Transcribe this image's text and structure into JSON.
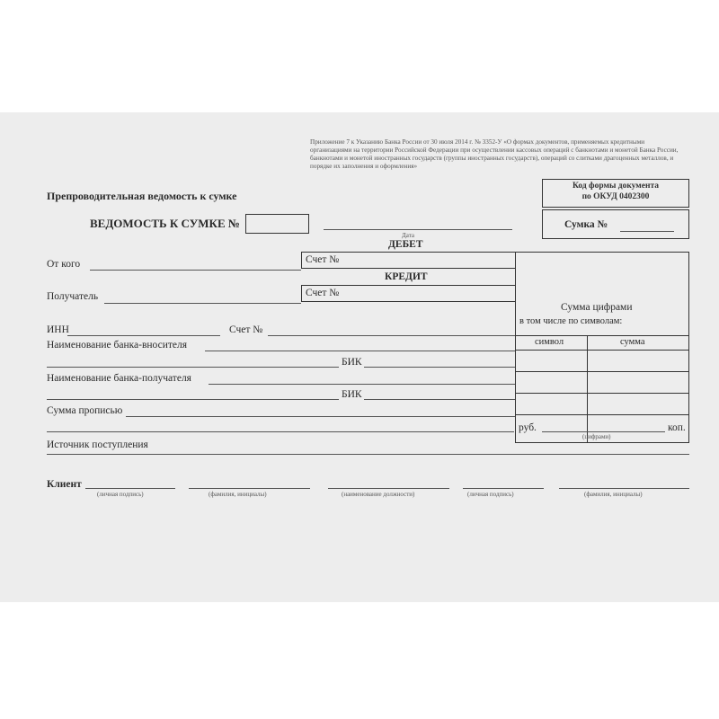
{
  "header_note": "Приложение 7 к Указанию Банка России от 30 июля 2014 г. № 3352-У «О формах документов, применяемых кредитными организациями на территории Российской Федерации при осуществлении кассовых операций с банкнотами и монетой Банка России, банкнотами и монетой иностранных государств (группы иностранных государств), операций со слитками драгоценных металлов, и порядке их заполнения и оформления»",
  "title": "Препроводительная ведомость к сумке",
  "form_code": {
    "line1": "Код формы документа",
    "line2": "по ОКУД 0402300"
  },
  "statement_label": "ВЕДОМОСТЬ К СУМКЕ №",
  "date_caption": "Дата",
  "bag_label": "Сумка №",
  "debit": "ДЕБЕТ",
  "credit": "КРЕДИТ",
  "account_label": "Счет №",
  "from_label": "От кого",
  "recipient_label": "Получатель",
  "sum_digits": "Сумма цифрами",
  "by_symbols": "в том числе по символам:",
  "symbol_col": "символ",
  "sum_col": "сумма",
  "inn_label": "ИНН",
  "depositor_bank": "Наименование банка-вносителя",
  "recipient_bank": "Наименование банка-получателя",
  "bik": "БИК",
  "sum_words": "Сумма прописью",
  "rub": "руб.",
  "kop": "коп.",
  "digits_caption": "(цифрами)",
  "source": "Источник поступления",
  "client": "Клиент",
  "captions": [
    "(личная подпись)",
    "(фамилия, инициалы)",
    "(наименование должности)",
    "(личная подпись)",
    "(фамилия, инициалы)"
  ]
}
